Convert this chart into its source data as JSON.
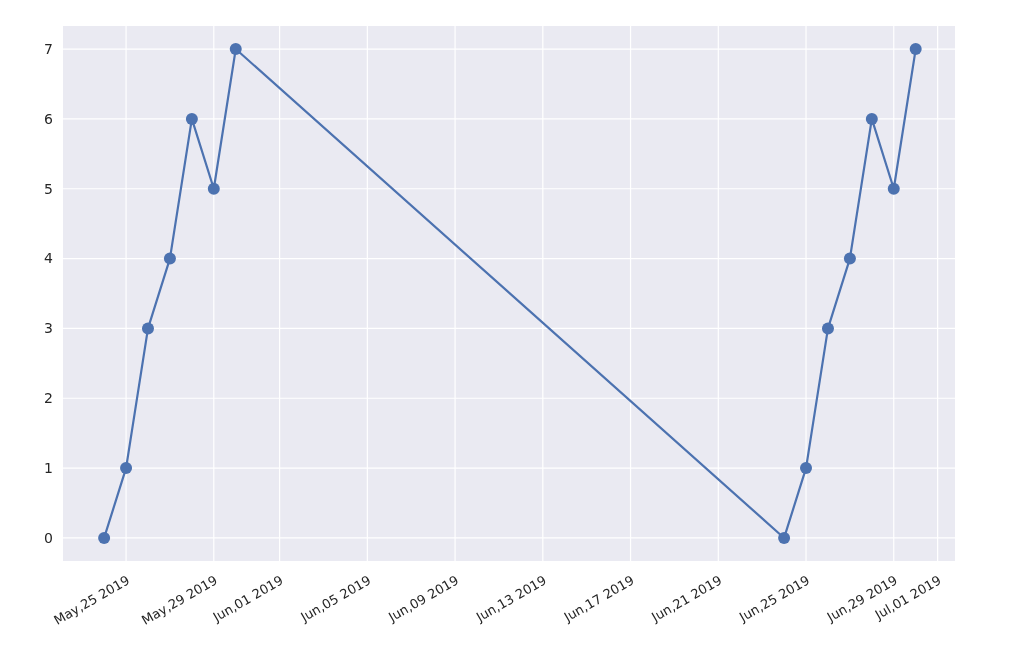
{
  "chart_data": {
    "type": "line",
    "x": [
      "2019-05-24",
      "2019-05-25",
      "2019-05-26",
      "2019-05-27",
      "2019-05-28",
      "2019-05-29",
      "2019-05-30",
      "2019-06-24",
      "2019-06-25",
      "2019-06-26",
      "2019-06-27",
      "2019-06-28",
      "2019-06-29",
      "2019-06-30"
    ],
    "series": [
      {
        "color": "#4c72b0",
        "values": [
          0,
          1,
          3,
          4,
          6,
          5,
          7,
          0,
          1,
          3,
          4,
          6,
          5,
          7
        ]
      }
    ],
    "xlim": [
      "2019-05-22T03:00",
      "2019-07-01T19:00"
    ],
    "xticks": [
      {
        "value": "2019-05-25",
        "label": "May,25 2019"
      },
      {
        "value": "2019-05-29",
        "label": "May,29 2019"
      },
      {
        "value": "2019-06-01",
        "label": "Jun,01 2019"
      },
      {
        "value": "2019-06-05",
        "label": "Jun,05 2019"
      },
      {
        "value": "2019-06-09",
        "label": "Jun,09 2019"
      },
      {
        "value": "2019-06-13",
        "label": "Jun,13 2019"
      },
      {
        "value": "2019-06-17",
        "label": "Jun,17 2019"
      },
      {
        "value": "2019-06-21",
        "label": "Jun,21 2019"
      },
      {
        "value": "2019-06-25",
        "label": "Jun,25 2019"
      },
      {
        "value": "2019-06-29",
        "label": "Jun,29 2019"
      },
      {
        "value": "2019-07-01",
        "label": "Jul,01 2019"
      }
    ],
    "ylim": [
      -0.33,
      7.33
    ],
    "yticks": [
      0,
      1,
      2,
      3,
      4,
      5,
      6,
      7
    ],
    "grid": true,
    "marker": "circle",
    "line_style": "solid"
  }
}
